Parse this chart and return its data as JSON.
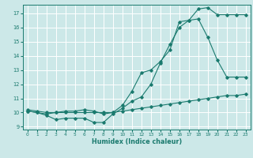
{
  "xlabel": "Humidex (Indice chaleur)",
  "bg_color": "#cce8e8",
  "line_color": "#1a7a6e",
  "grid_color": "#ffffff",
  "xlim": [
    -0.5,
    23.5
  ],
  "ylim": [
    8.8,
    17.6
  ],
  "yticks": [
    9,
    10,
    11,
    12,
    13,
    14,
    15,
    16,
    17
  ],
  "xticks": [
    0,
    1,
    2,
    3,
    4,
    5,
    6,
    7,
    8,
    9,
    10,
    11,
    12,
    13,
    14,
    15,
    16,
    17,
    18,
    19,
    20,
    21,
    22,
    23
  ],
  "line1_x": [
    0,
    1,
    2,
    3,
    4,
    5,
    6,
    7,
    8,
    9,
    10,
    11,
    12,
    13,
    14,
    15,
    16,
    17,
    18,
    19,
    20,
    21,
    22,
    23
  ],
  "line1_y": [
    10.2,
    10.1,
    10.0,
    10.0,
    10.1,
    10.1,
    10.2,
    10.1,
    9.9,
    10.0,
    10.5,
    11.5,
    12.8,
    13.0,
    13.6,
    14.4,
    16.4,
    16.5,
    17.3,
    17.4,
    16.9,
    16.9,
    16.9,
    16.9
  ],
  "line2_x": [
    0,
    1,
    2,
    3,
    4,
    5,
    6,
    7,
    8,
    9,
    10,
    11,
    12,
    13,
    14,
    15,
    16,
    17,
    18,
    19,
    20,
    21,
    22,
    23
  ],
  "line2_y": [
    10.1,
    10.0,
    9.8,
    9.5,
    9.6,
    9.6,
    9.6,
    9.3,
    9.3,
    9.9,
    10.3,
    10.8,
    11.1,
    12.0,
    13.5,
    14.8,
    16.0,
    16.5,
    16.6,
    15.3,
    13.7,
    12.5,
    12.5,
    12.5
  ],
  "line3_x": [
    0,
    1,
    2,
    3,
    4,
    5,
    6,
    7,
    8,
    9,
    10,
    11,
    12,
    13,
    14,
    15,
    16,
    17,
    18,
    19,
    20,
    21,
    22,
    23
  ],
  "line3_y": [
    10.1,
    10.0,
    9.9,
    10.0,
    10.0,
    10.0,
    10.0,
    10.0,
    10.0,
    10.0,
    10.1,
    10.2,
    10.3,
    10.4,
    10.5,
    10.6,
    10.7,
    10.8,
    10.9,
    11.0,
    11.1,
    11.2,
    11.2,
    11.3
  ]
}
